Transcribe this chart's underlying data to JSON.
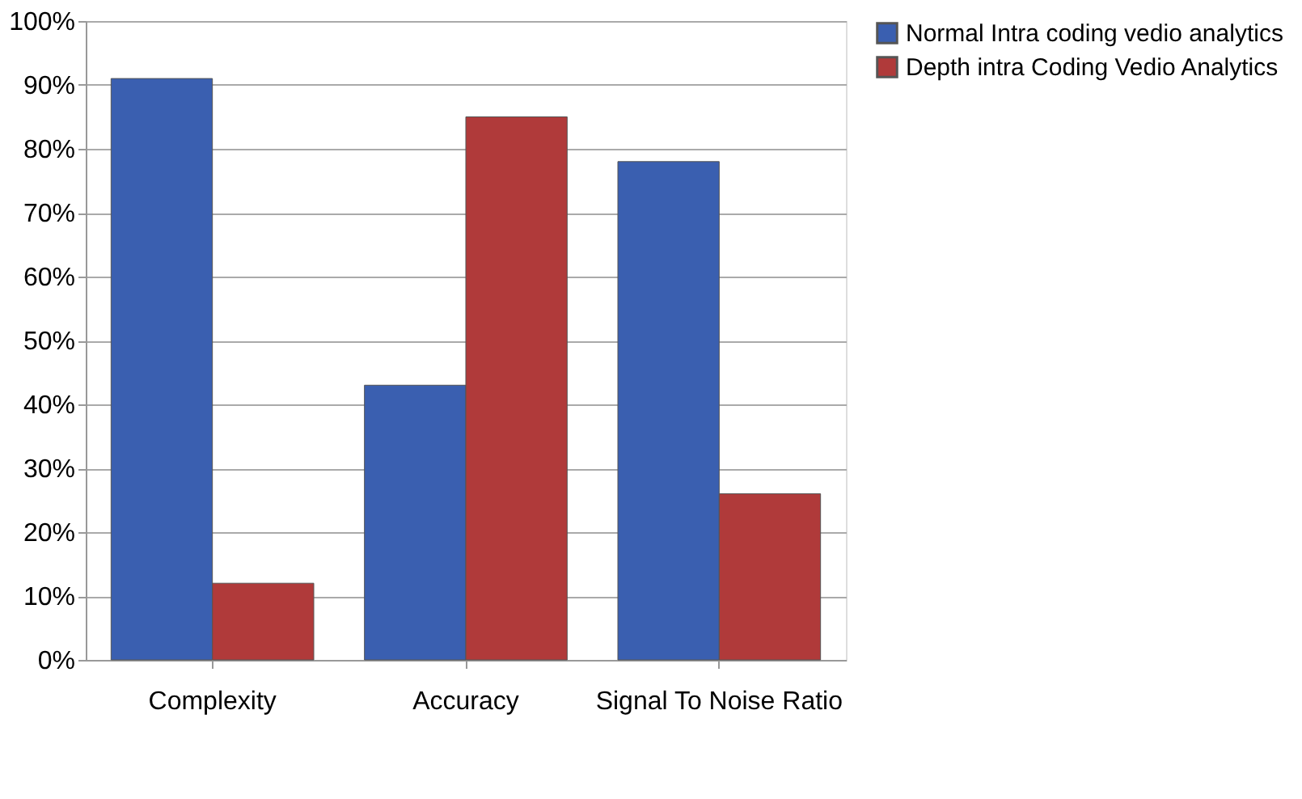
{
  "chart_data": {
    "type": "bar",
    "categories": [
      "Complexity",
      "Accuracy",
      "Signal To Noise Ratio"
    ],
    "series": [
      {
        "name": "Normal Intra coding vedio analytics",
        "color": "#3a5fb0",
        "values": [
          91,
          43,
          78
        ]
      },
      {
        "name": "Depth intra Coding Vedio Analytics",
        "color": "#b03a3a",
        "values": [
          12,
          85,
          26
        ]
      }
    ],
    "ylim": [
      0,
      100
    ],
    "yticks": [
      {
        "value": 0,
        "label": "0%"
      },
      {
        "value": 10,
        "label": "10%"
      },
      {
        "value": 20,
        "label": "20%"
      },
      {
        "value": 30,
        "label": "30%"
      },
      {
        "value": 40,
        "label": "40%"
      },
      {
        "value": 50,
        "label": "50%"
      },
      {
        "value": 60,
        "label": "60%"
      },
      {
        "value": 70,
        "label": "70%"
      },
      {
        "value": 80,
        "label": "80%"
      },
      {
        "value": 90,
        "label": "90%"
      },
      {
        "value": 100,
        "label": "100%"
      }
    ],
    "grid": "y",
    "legend": "right"
  }
}
